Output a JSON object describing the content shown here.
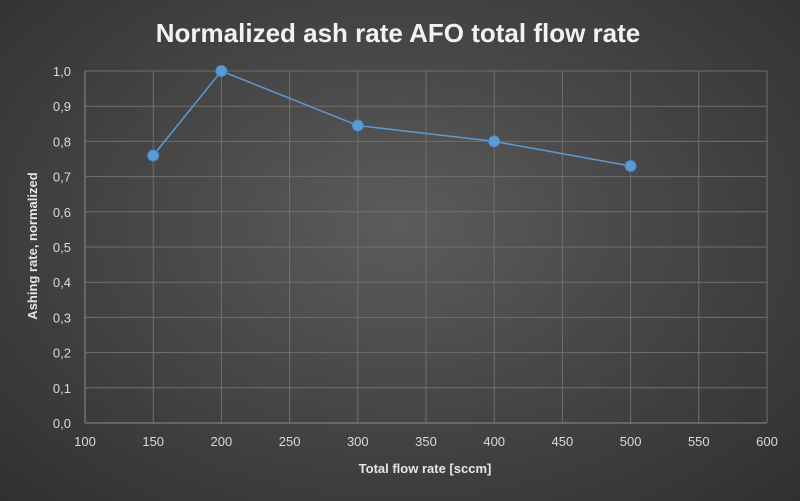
{
  "chart_data": {
    "type": "scatter",
    "title": "Normalized ash rate AFO total flow rate",
    "xlabel": "Total flow rate [sccm]",
    "ylabel": "Ashing rate, normalized",
    "xlim": [
      100,
      600
    ],
    "ylim": [
      0,
      1.0
    ],
    "x_ticks": [
      "100",
      "150",
      "200",
      "250",
      "300",
      "350",
      "400",
      "450",
      "500",
      "550",
      "600"
    ],
    "y_ticks": [
      "0,0",
      "0,1",
      "0,2",
      "0,3",
      "0,4",
      "0,5",
      "0,6",
      "0,7",
      "0,8",
      "0,9",
      "1,0"
    ],
    "grid": true,
    "legend": "none",
    "series": [
      {
        "color": "#5b9bd5",
        "line": true,
        "markers": true,
        "x": [
          150,
          200,
          300,
          400,
          500
        ],
        "y": [
          0.76,
          1.0,
          0.845,
          0.8,
          0.73
        ]
      }
    ]
  }
}
